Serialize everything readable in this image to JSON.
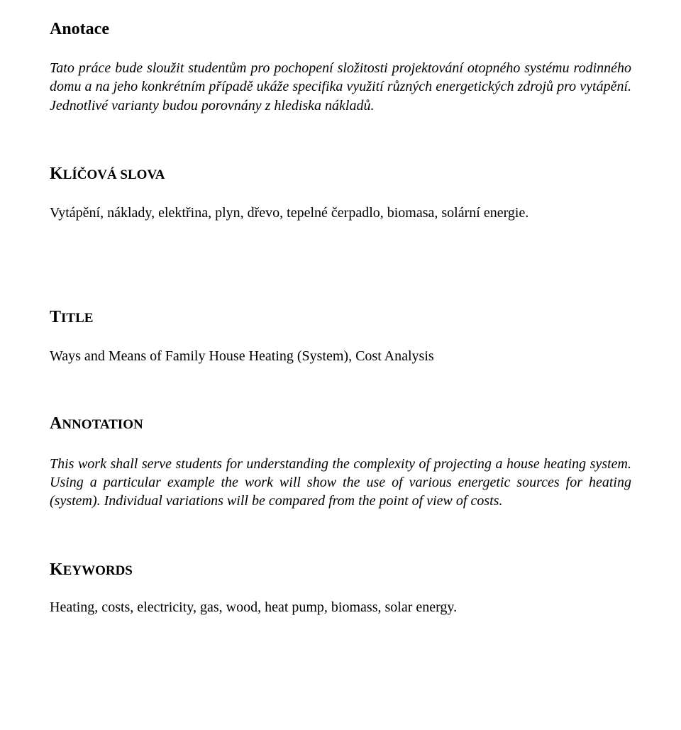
{
  "page": {
    "background_color": "#ffffff",
    "text_color": "#000000",
    "font_family": "Times New Roman"
  },
  "anotace": {
    "heading": "Anotace",
    "body": "Tato práce bude sloužit studentům pro pochopení složitosti projektování otopného systému rodinného domu a na jeho konkrétním případě ukáže specifika využití různých energetických zdrojů pro vytápění. Jednotlivé varianty budou porovnány z hlediska nákladů.",
    "heading_fontsize": 24,
    "body_fontsize": 20,
    "body_italic": true
  },
  "klicova": {
    "heading_cap": "K",
    "heading_rest": "LÍČOVÁ SLOVA",
    "body": "Vytápění, náklady, elektřina, plyn, dřevo, tepelné čerpadlo, biomasa, solární energie.",
    "body_fontsize": 20
  },
  "title_section": {
    "heading_cap": "T",
    "heading_rest": "ITLE",
    "body": "Ways and Means of Family House Heating (System), Cost Analysis",
    "body_fontsize": 20
  },
  "annotation": {
    "heading_cap": "A",
    "heading_rest": "NNOTATION",
    "body": "This work shall serve students for understanding the complexity of projecting a house heating system. Using a particular example the work will show the use of various energetic sources for heating (system). Individual variations will be compared from the point of view of costs.",
    "body_fontsize": 20,
    "body_italic": true
  },
  "keywords": {
    "heading_cap": "K",
    "heading_rest": "EYWORDS",
    "body": "Heating, costs, electricity, gas, wood, heat pump, biomass, solar energy.",
    "body_fontsize": 20
  }
}
